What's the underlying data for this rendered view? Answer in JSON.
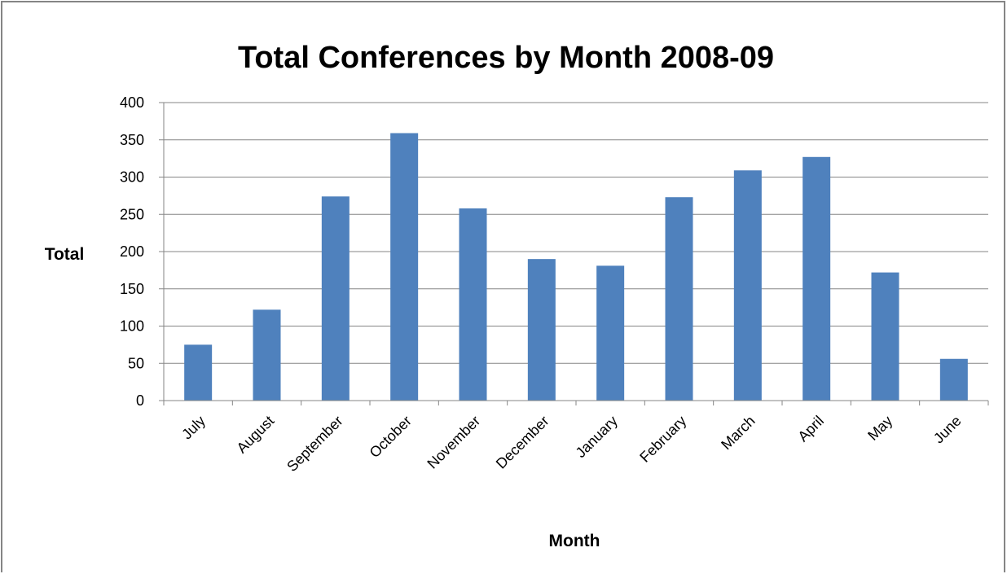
{
  "chart_data": {
    "type": "bar",
    "title": "Total Conferences by Month 2008-09",
    "xlabel": "Month",
    "ylabel": "Total",
    "categories": [
      "July",
      "August",
      "September",
      "October",
      "November",
      "December",
      "January",
      "February",
      "March",
      "April",
      "May",
      "June"
    ],
    "values": [
      75,
      122,
      274,
      359,
      258,
      190,
      181,
      273,
      309,
      327,
      172,
      56
    ],
    "ylim": [
      0,
      400
    ],
    "yticks": [
      "0",
      "50",
      "100",
      "150",
      "200",
      "250",
      "300",
      "350",
      "400"
    ],
    "grid": true,
    "legend": "none",
    "bar_color": "#4F81BD",
    "grid_color": "#868686"
  }
}
